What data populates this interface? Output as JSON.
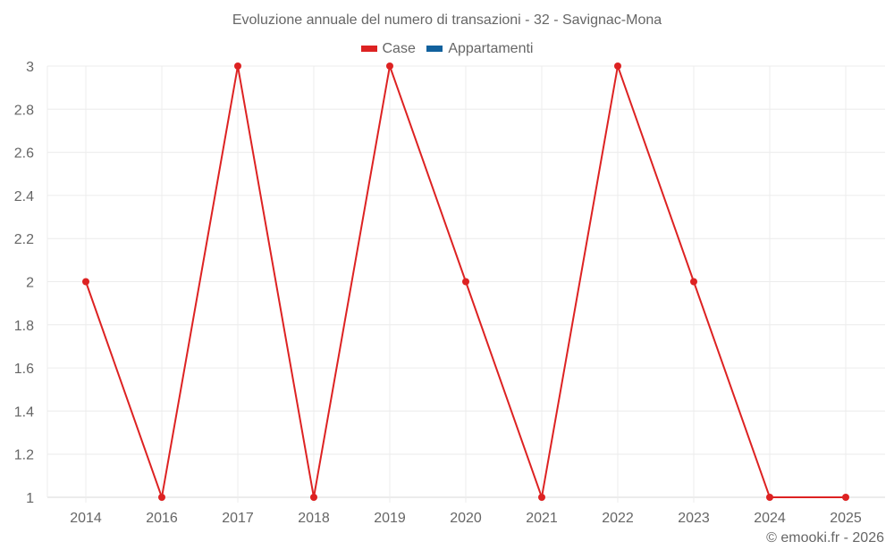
{
  "chart_data": {
    "type": "line",
    "title": "Evoluzione annuale del numero di transazioni - 32 - Savignac-Mona",
    "categories": [
      "2014",
      "2016",
      "2017",
      "2018",
      "2019",
      "2020",
      "2021",
      "2022",
      "2023",
      "2024",
      "2025"
    ],
    "series": [
      {
        "name": "Case",
        "color": "#dd2222",
        "values": [
          2,
          1,
          3,
          1,
          3,
          2,
          1,
          3,
          2,
          1,
          1
        ]
      },
      {
        "name": "Appartamenti",
        "color": "#11619d",
        "values": []
      }
    ],
    "xlabel": "",
    "ylabel": "",
    "ylim": [
      1,
      3
    ],
    "yticks": [
      "3",
      "2.8",
      "2.6",
      "2.4",
      "2.2",
      "2",
      "1.8",
      "1.6",
      "1.4",
      "1.2",
      "1"
    ],
    "grid": true,
    "legend_position": "top"
  },
  "legend": {
    "items": [
      {
        "label": "Case",
        "color": "#dd2222"
      },
      {
        "label": "Appartamenti",
        "color": "#11619d"
      }
    ]
  },
  "credit": "© emooki.fr - 2026"
}
